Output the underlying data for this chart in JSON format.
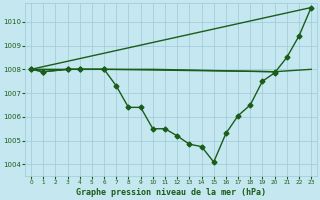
{
  "xlabel": "Graphe pression niveau de la mer (hPa)",
  "bg_color": "#c5e8f0",
  "grid_color": "#9ec8d8",
  "line_color": "#1a5c1a",
  "xlim": [
    -0.5,
    23.5
  ],
  "ylim": [
    1003.5,
    1010.8
  ],
  "yticks": [
    1004,
    1005,
    1006,
    1007,
    1008,
    1009,
    1010
  ],
  "xticks": [
    0,
    1,
    2,
    3,
    4,
    5,
    6,
    7,
    8,
    9,
    10,
    11,
    12,
    13,
    14,
    15,
    16,
    17,
    18,
    19,
    20,
    21,
    22,
    23
  ],
  "line1_x": [
    0,
    1,
    3,
    4,
    6,
    20
  ],
  "line1_y": [
    1008.0,
    1007.9,
    1008.0,
    1008.0,
    1008.0,
    1007.9
  ],
  "line2_x": [
    0,
    6,
    10,
    20,
    23
  ],
  "line2_y": [
    1008.0,
    1008.0,
    1008.0,
    1007.9,
    1008.0
  ],
  "line3_x": [
    0,
    23
  ],
  "line3_y": [
    1008.0,
    1010.6
  ],
  "line4_x": [
    0,
    1,
    3,
    4,
    6,
    7,
    8,
    9,
    10,
    11,
    12,
    13,
    14,
    15,
    16,
    17,
    18,
    19,
    20,
    21,
    22,
    23
  ],
  "line4_y": [
    1008.0,
    1007.9,
    1008.0,
    1008.0,
    1008.0,
    1007.3,
    1006.4,
    1006.4,
    1005.5,
    1005.5,
    1005.2,
    1004.85,
    1004.75,
    1004.1,
    1005.3,
    1006.05,
    1006.5,
    1007.5,
    1007.85,
    1008.5,
    1009.4,
    1010.6
  ],
  "marker_size": 2.5,
  "line_width": 1.0
}
